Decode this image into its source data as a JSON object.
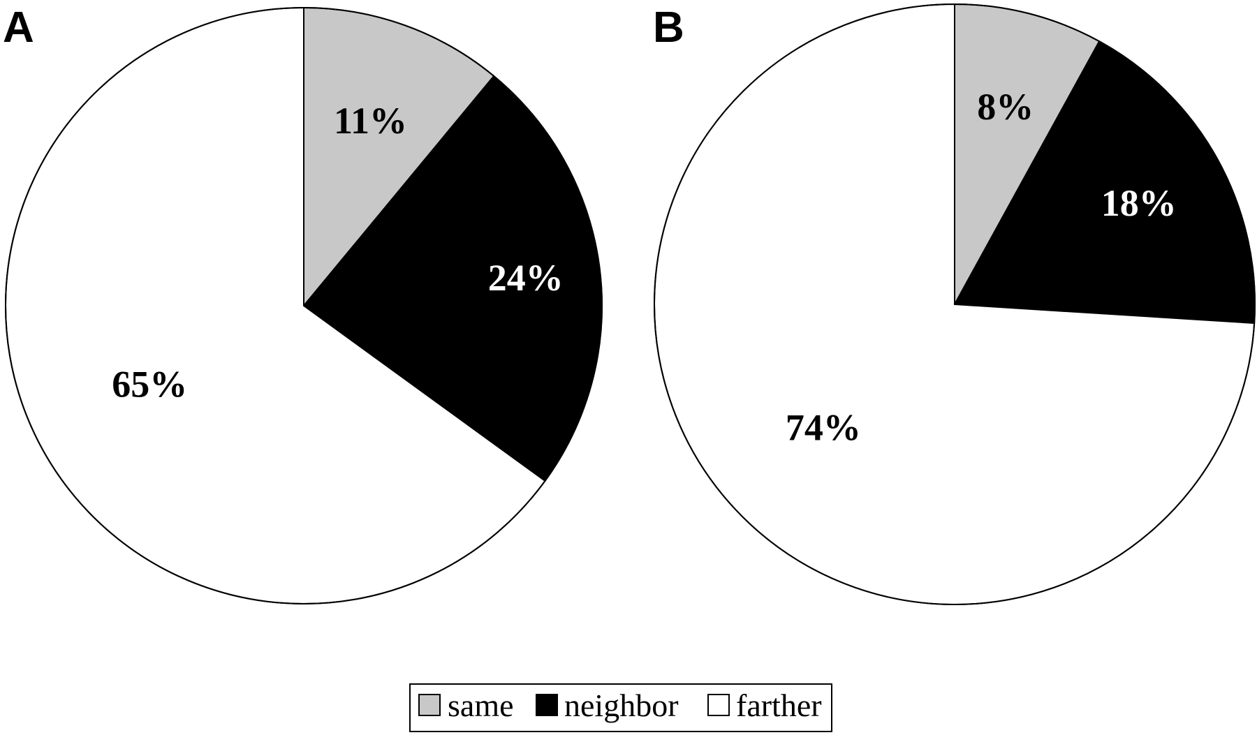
{
  "chart_data": [
    {
      "type": "pie",
      "panel_label": "A",
      "start_angle": "12 o'clock",
      "direction": "clockwise",
      "slices": [
        {
          "name": "same",
          "value": 11,
          "label": "11%",
          "color": "#c8c8c8",
          "label_color": "#000000"
        },
        {
          "name": "neighbor",
          "value": 24,
          "label": "24%",
          "color": "#000000",
          "label_color": "#ffffff"
        },
        {
          "name": "farther",
          "value": 65,
          "label": "65%",
          "color": "#ffffff",
          "label_color": "#000000"
        }
      ]
    },
    {
      "type": "pie",
      "panel_label": "B",
      "start_angle": "12 o'clock",
      "direction": "clockwise",
      "slices": [
        {
          "name": "same",
          "value": 8,
          "label": "8%",
          "color": "#c8c8c8",
          "label_color": "#000000"
        },
        {
          "name": "neighbor",
          "value": 18,
          "label": "18%",
          "color": "#000000",
          "label_color": "#ffffff"
        },
        {
          "name": "farther",
          "value": 74,
          "label": "74%",
          "color": "#ffffff",
          "label_color": "#000000"
        }
      ]
    }
  ],
  "legend": {
    "position": "bottom-center",
    "items": [
      {
        "label": "same",
        "color": "#c8c8c8"
      },
      {
        "label": "neighbor",
        "color": "#000000"
      },
      {
        "label": "farther",
        "color": "#ffffff"
      }
    ]
  }
}
